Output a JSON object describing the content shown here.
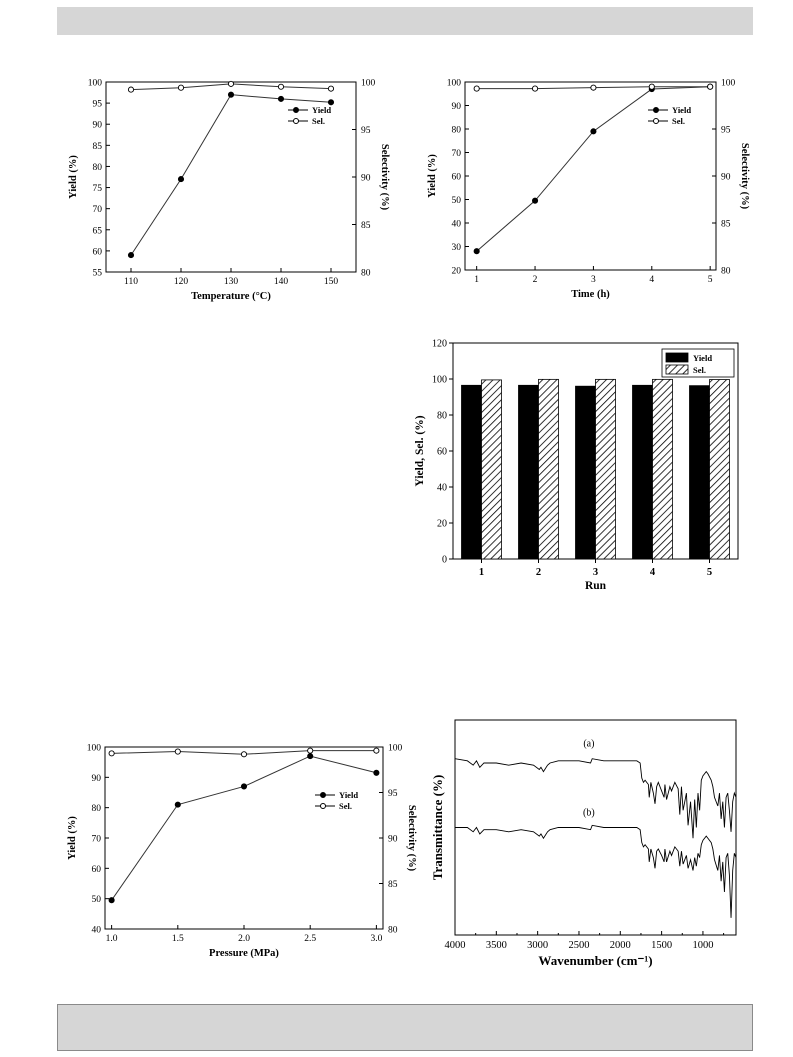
{
  "page": {
    "header_color": "#d6d6d6",
    "footer_color": "#d6d6d6"
  },
  "chart_data": [
    {
      "id": "temperature",
      "type": "line",
      "xlabel": "Temperature (°C)",
      "ylabel": "Yield (%)",
      "y2label": "Selectivity (%)",
      "x": [
        110,
        120,
        130,
        140,
        150
      ],
      "xlim": [
        105,
        155
      ],
      "xticks": [
        110,
        120,
        130,
        140,
        150
      ],
      "ylim": [
        55,
        100
      ],
      "yticks": [
        55,
        60,
        65,
        70,
        75,
        80,
        85,
        90,
        95,
        100
      ],
      "y2lim": [
        80,
        100
      ],
      "y2ticks": [
        80,
        85,
        90,
        95,
        100
      ],
      "series": [
        {
          "name": "Yield",
          "axis": "left",
          "marker": "filled",
          "values": [
            59,
            77,
            97,
            96,
            95.2
          ]
        },
        {
          "name": "Sel.",
          "axis": "right",
          "marker": "open",
          "values": [
            99.2,
            99.4,
            99.8,
            99.5,
            99.3
          ]
        }
      ],
      "legend": "upper-right"
    },
    {
      "id": "time",
      "type": "line",
      "xlabel": "Time (h)",
      "ylabel": "Yield (%)",
      "y2label": "Selectivity (%)",
      "x": [
        1,
        2,
        3,
        4,
        5
      ],
      "xlim": [
        0.8,
        5.1
      ],
      "xticks": [
        1,
        2,
        3,
        4,
        5
      ],
      "ylim": [
        20,
        100
      ],
      "yticks": [
        20,
        30,
        40,
        50,
        60,
        70,
        80,
        90,
        100
      ],
      "y2lim": [
        80,
        100
      ],
      "y2ticks": [
        80,
        85,
        90,
        95,
        100
      ],
      "series": [
        {
          "name": "Yield",
          "axis": "left",
          "marker": "filled",
          "values": [
            28,
            49.5,
            79,
            97,
            98
          ]
        },
        {
          "name": "Sel.",
          "axis": "right",
          "marker": "open",
          "values": [
            99.3,
            99.3,
            99.4,
            99.5,
            99.5
          ]
        }
      ],
      "legend": "upper-right"
    },
    {
      "id": "runs",
      "type": "bar",
      "xlabel": "Run",
      "ylabel": "Yield, Sel. (%)",
      "categories": [
        "1",
        "2",
        "3",
        "4",
        "5"
      ],
      "ylim": [
        0,
        120
      ],
      "yticks": [
        0,
        20,
        40,
        60,
        80,
        100,
        120
      ],
      "series": [
        {
          "name": "Yield",
          "fill": "solid",
          "values": [
            96.5,
            96.5,
            96,
            96.5,
            96.3
          ]
        },
        {
          "name": "Sel.",
          "fill": "hatched",
          "values": [
            99.5,
            99.8,
            99.8,
            99.8,
            99.7
          ]
        }
      ],
      "legend": "upper-right"
    },
    {
      "id": "pressure",
      "type": "line",
      "xlabel": "Pressure (MPa)",
      "ylabel": "Yield (%)",
      "y2label": "Selectivity (%)",
      "x": [
        1.0,
        1.5,
        2.0,
        2.5,
        3.0
      ],
      "xticklabels": [
        "1.0",
        "1.5",
        "2.0",
        "2.5",
        "3.0"
      ],
      "xlim": [
        0.95,
        3.05
      ],
      "xticks": [
        1.0,
        1.5,
        2.0,
        2.5,
        3.0
      ],
      "ylim": [
        40,
        100
      ],
      "yticks": [
        40,
        50,
        60,
        70,
        80,
        90,
        100
      ],
      "y2lim": [
        80,
        100
      ],
      "y2ticks": [
        80,
        85,
        90,
        95,
        100
      ],
      "series": [
        {
          "name": "Yield",
          "axis": "left",
          "marker": "filled",
          "values": [
            49.5,
            81,
            87,
            97,
            91.5
          ]
        },
        {
          "name": "Sel.",
          "axis": "right",
          "marker": "open",
          "values": [
            99.3,
            99.5,
            99.2,
            99.6,
            99.6
          ]
        }
      ],
      "legend": "right"
    },
    {
      "id": "ftir",
      "type": "line",
      "xlabel": "Wavenumber (cm⁻¹)",
      "ylabel": "Transmittance (%)",
      "xlim": [
        4000,
        600
      ],
      "xticks": [
        4000,
        3500,
        3000,
        2500,
        2000,
        1500,
        1000
      ],
      "yticks": [],
      "annotations": [
        "(a)",
        "(b)"
      ],
      "series": [
        {
          "name": "(a)",
          "baseline": 0.82,
          "x": [
            4000,
            3850,
            3780,
            3740,
            3700,
            3650,
            3500,
            3350,
            3200,
            3050,
            2980,
            2960,
            2930,
            2880,
            2850,
            2750,
            2500,
            2360,
            2340,
            2200,
            2000,
            1800,
            1760,
            1740,
            1720,
            1700,
            1660,
            1650,
            1630,
            1600,
            1580,
            1560,
            1540,
            1500,
            1470,
            1460,
            1440,
            1400,
            1380,
            1340,
            1300,
            1280,
            1260,
            1240,
            1200,
            1180,
            1150,
            1120,
            1100,
            1080,
            1060,
            1040,
            1020,
            1000,
            960,
            940,
            900,
            880,
            860,
            820,
            800,
            780,
            760,
            740,
            720,
            700,
            680,
            660,
            640,
            620,
            600
          ],
          "y": [
            0.82,
            0.81,
            0.79,
            0.81,
            0.78,
            0.8,
            0.8,
            0.79,
            0.8,
            0.79,
            0.77,
            0.78,
            0.76,
            0.79,
            0.8,
            0.81,
            0.81,
            0.8,
            0.82,
            0.81,
            0.81,
            0.81,
            0.8,
            0.73,
            0.71,
            0.72,
            0.7,
            0.64,
            0.71,
            0.66,
            0.61,
            0.69,
            0.71,
            0.67,
            0.64,
            0.7,
            0.63,
            0.69,
            0.67,
            0.71,
            0.68,
            0.56,
            0.69,
            0.58,
            0.66,
            0.51,
            0.62,
            0.45,
            0.63,
            0.5,
            0.66,
            0.58,
            0.72,
            0.74,
            0.76,
            0.75,
            0.72,
            0.69,
            0.64,
            0.6,
            0.66,
            0.54,
            0.62,
            0.5,
            0.64,
            0.66,
            0.58,
            0.48,
            0.62,
            0.66,
            0.64
          ]
        },
        {
          "name": "(b)",
          "baseline": 0.5,
          "x": [
            4000,
            3850,
            3780,
            3740,
            3700,
            3650,
            3500,
            3350,
            3200,
            3050,
            2980,
            2960,
            2930,
            2880,
            2850,
            2750,
            2500,
            2360,
            2340,
            2200,
            2000,
            1800,
            1760,
            1740,
            1720,
            1700,
            1660,
            1650,
            1630,
            1600,
            1580,
            1560,
            1540,
            1500,
            1470,
            1460,
            1440,
            1400,
            1380,
            1340,
            1300,
            1280,
            1260,
            1240,
            1200,
            1180,
            1150,
            1120,
            1100,
            1080,
            1060,
            1040,
            1020,
            1000,
            960,
            940,
            900,
            880,
            860,
            820,
            800,
            780,
            760,
            740,
            720,
            700,
            680,
            660,
            640,
            620,
            600
          ],
          "y": [
            0.5,
            0.5,
            0.48,
            0.5,
            0.47,
            0.49,
            0.49,
            0.48,
            0.49,
            0.48,
            0.46,
            0.47,
            0.45,
            0.48,
            0.49,
            0.5,
            0.5,
            0.49,
            0.51,
            0.5,
            0.5,
            0.5,
            0.49,
            0.43,
            0.41,
            0.42,
            0.4,
            0.34,
            0.4,
            0.36,
            0.31,
            0.39,
            0.4,
            0.37,
            0.34,
            0.4,
            0.34,
            0.39,
            0.37,
            0.41,
            0.39,
            0.32,
            0.39,
            0.33,
            0.37,
            0.31,
            0.35,
            0.3,
            0.36,
            0.32,
            0.38,
            0.36,
            0.42,
            0.44,
            0.46,
            0.45,
            0.43,
            0.4,
            0.35,
            0.3,
            0.37,
            0.25,
            0.34,
            0.2,
            0.36,
            0.38,
            0.28,
            0.08,
            0.3,
            0.38,
            0.36
          ]
        }
      ]
    }
  ]
}
